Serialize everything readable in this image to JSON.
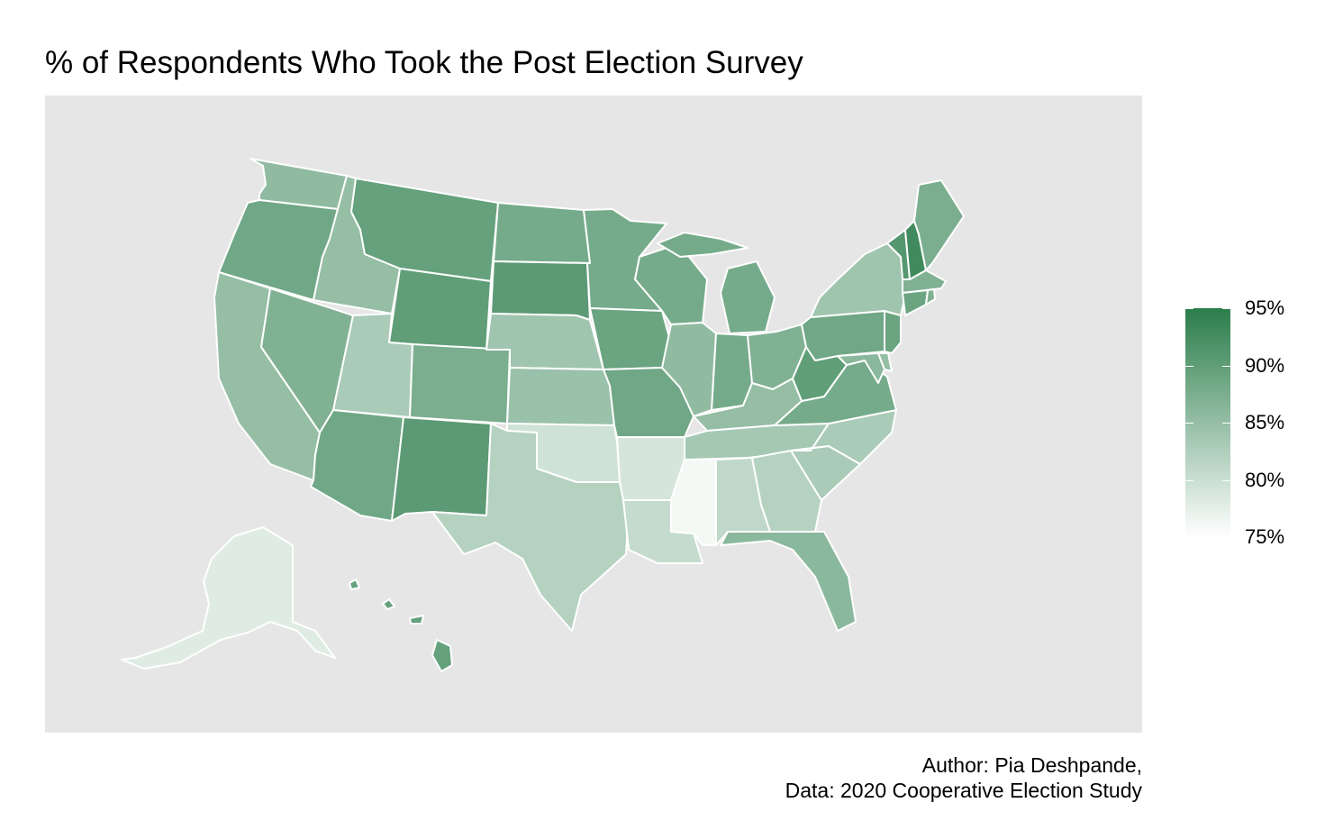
{
  "title": "% of Respondents Who Took the Post Election Survey",
  "caption": {
    "line1": "Author: Pia Deshpande,",
    "line2": "Data: 2020 Cooperative Election Study"
  },
  "legend": {
    "min": 75,
    "max": 95,
    "low_color": "#ffffff",
    "high_color": "#2b7d4b",
    "ticks": [
      {
        "value": 95,
        "label": "95%"
      },
      {
        "value": 90,
        "label": "90%"
      },
      {
        "value": 85,
        "label": "85%"
      },
      {
        "value": 80,
        "label": "80%"
      },
      {
        "value": 75,
        "label": "75%"
      }
    ]
  },
  "states": [
    {
      "abbr": "WA",
      "value": 85.5
    },
    {
      "abbr": "OR",
      "value": 88.5
    },
    {
      "abbr": "CA",
      "value": 85
    },
    {
      "abbr": "ID",
      "value": 85
    },
    {
      "abbr": "NV",
      "value": 87
    },
    {
      "abbr": "MT",
      "value": 89.5
    },
    {
      "abbr": "WY",
      "value": 90
    },
    {
      "abbr": "UT",
      "value": 83
    },
    {
      "abbr": "AZ",
      "value": 88.5
    },
    {
      "abbr": "CO",
      "value": 87.5
    },
    {
      "abbr": "NM",
      "value": 90.5
    },
    {
      "abbr": "ND",
      "value": 88
    },
    {
      "abbr": "SD",
      "value": 90.5
    },
    {
      "abbr": "NE",
      "value": 84
    },
    {
      "abbr": "KS",
      "value": 84.5
    },
    {
      "abbr": "OK",
      "value": 79.5
    },
    {
      "abbr": "TX",
      "value": 82
    },
    {
      "abbr": "MN",
      "value": 88
    },
    {
      "abbr": "IA",
      "value": 89
    },
    {
      "abbr": "MO",
      "value": 88.5
    },
    {
      "abbr": "AR",
      "value": 79
    },
    {
      "abbr": "LA",
      "value": 80.5
    },
    {
      "abbr": "WI",
      "value": 88
    },
    {
      "abbr": "IL",
      "value": 85.5
    },
    {
      "abbr": "MI",
      "value": 88
    },
    {
      "abbr": "IN",
      "value": 88
    },
    {
      "abbr": "OH",
      "value": 87
    },
    {
      "abbr": "KY",
      "value": 85
    },
    {
      "abbr": "TN",
      "value": 83.5
    },
    {
      "abbr": "MS",
      "value": 76
    },
    {
      "abbr": "AL",
      "value": 81
    },
    {
      "abbr": "GA",
      "value": 82
    },
    {
      "abbr": "FL",
      "value": 86
    },
    {
      "abbr": "SC",
      "value": 83
    },
    {
      "abbr": "NC",
      "value": 83
    },
    {
      "abbr": "VA",
      "value": 88
    },
    {
      "abbr": "WV",
      "value": 90
    },
    {
      "abbr": "PA",
      "value": 88.5
    },
    {
      "abbr": "NY",
      "value": 84
    },
    {
      "abbr": "VT",
      "value": 91
    },
    {
      "abbr": "NH",
      "value": 93
    },
    {
      "abbr": "ME",
      "value": 87.5
    },
    {
      "abbr": "MA",
      "value": 87
    },
    {
      "abbr": "CT",
      "value": 89
    },
    {
      "abbr": "RI",
      "value": 87
    },
    {
      "abbr": "NJ",
      "value": 89
    },
    {
      "abbr": "DE",
      "value": 85
    },
    {
      "abbr": "MD",
      "value": 86
    },
    {
      "abbr": "AK",
      "value": 78
    },
    {
      "abbr": "HI",
      "value": 89.5
    }
  ]
}
